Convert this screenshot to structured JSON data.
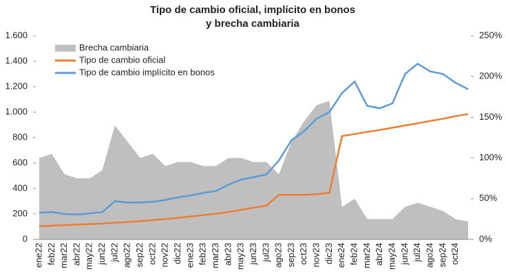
{
  "chart_data": {
    "type": "combo",
    "title": [
      "Tipo de cambio oficial, implícito en bonos",
      "y brecha cambiaria"
    ],
    "categories": [
      "ene22",
      "feb22",
      "mar22",
      "abr22",
      "may22",
      "jun22",
      "jul22",
      "ago22",
      "sep22",
      "oct22",
      "nov22",
      "dic22",
      "ene23",
      "feb23",
      "mar23",
      "abr23",
      "may23",
      "jun23",
      "jul23",
      "ago23",
      "sep23",
      "oct23",
      "nov23",
      "dic23",
      "ene24",
      "feb24",
      "mar24",
      "abr24",
      "may24",
      "jun24",
      "jul24",
      "ago24",
      "sep24",
      "oct24",
      null
    ],
    "series": [
      {
        "name": "Brecha cambiaria",
        "kind": "area",
        "axis": "y2",
        "color": "#bfbfbf",
        "values": [
          100,
          105,
          80,
          75,
          75,
          85,
          140,
          120,
          100,
          105,
          90,
          95,
          95,
          90,
          90,
          100,
          100,
          95,
          95,
          80,
          120,
          145,
          165,
          170,
          40,
          50,
          25,
          25,
          25,
          40,
          45,
          40,
          35,
          25,
          22
        ]
      },
      {
        "name": "Tipo de cambio oficial",
        "kind": "line",
        "color": "#ed7d31",
        "values": [
          103,
          108,
          112,
          116,
          120,
          125,
          131,
          137,
          144,
          152,
          160,
          170,
          180,
          191,
          202,
          215,
          232,
          250,
          265,
          350,
          350,
          350,
          355,
          366,
          812,
          828,
          845,
          860,
          878,
          895,
          912,
          930,
          948,
          968,
          985
        ]
      },
      {
        "name": "Tipo de cambio implícito en bonos",
        "kind": "line",
        "color": "#5b9bd5",
        "values": [
          210,
          215,
          200,
          195,
          205,
          215,
          300,
          290,
          290,
          295,
          310,
          330,
          345,
          365,
          380,
          430,
          470,
          490,
          510,
          620,
          780,
          850,
          950,
          1000,
          1150,
          1240,
          1050,
          1030,
          1070,
          1300,
          1380,
          1320,
          1300,
          1230,
          1180
        ]
      }
    ],
    "ylim": [
      0,
      1600
    ],
    "yticks": [
      0,
      200,
      400,
      600,
      800,
      {
        "value": 1000,
        "label": "1.000"
      },
      {
        "value": 1200,
        "label": "1.200"
      },
      {
        "value": 1400,
        "label": "1.400"
      },
      {
        "value": 1600,
        "label": "1.600"
      }
    ],
    "y2lim": [
      0,
      250
    ],
    "y2ticks": [
      {
        "value": 0,
        "label": "0%"
      },
      {
        "value": 50,
        "label": "50%"
      },
      {
        "value": 100,
        "label": "100%"
      },
      {
        "value": 150,
        "label": "150%"
      },
      {
        "value": 200,
        "label": "200%"
      },
      {
        "value": 250,
        "label": "250%"
      }
    ],
    "legend": "top-left"
  }
}
